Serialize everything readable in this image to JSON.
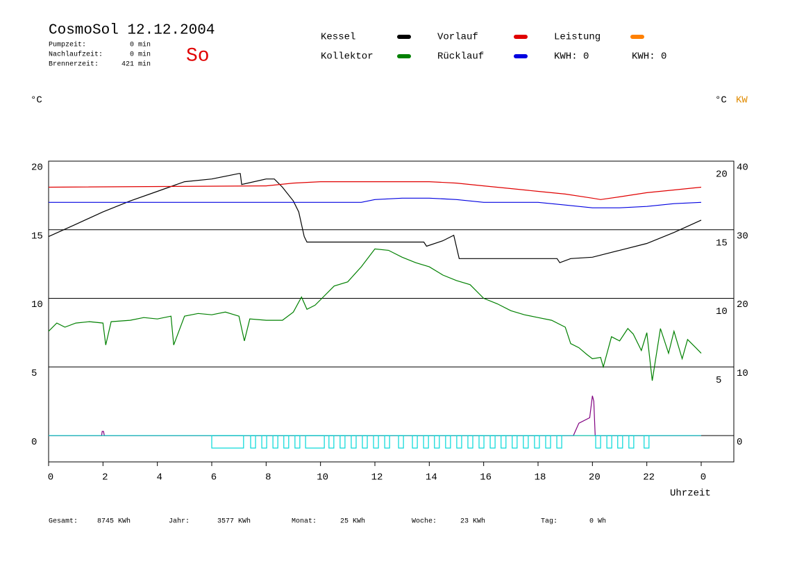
{
  "header": {
    "title": "CosmoSol 12.12.2004",
    "day": "So",
    "info": [
      {
        "label": "Pumpzeit:",
        "value": "0 min"
      },
      {
        "label": "Nachlaufzeit:",
        "value": "0 min"
      },
      {
        "label": "Brennerzeit:",
        "value": "421 min"
      }
    ],
    "kwh_labels": [
      {
        "text": "KWH: 0",
        "color": "#ff8000"
      },
      {
        "text": "KWH: 0",
        "color": "#800080"
      }
    ]
  },
  "chart_data": {
    "type": "line",
    "y_unit_left": "°C",
    "y_unit_right": "°C",
    "y2_unit": "KW",
    "x_label": "Uhrzeit",
    "xlim": [
      0,
      25.2
    ],
    "xticks": [
      0,
      2,
      4,
      6,
      8,
      10,
      12,
      14,
      16,
      18,
      20,
      22,
      {
        "value": 24,
        "label": "0"
      }
    ],
    "ylim": [
      -1.92,
      20
    ],
    "yticks": [
      0,
      5,
      10,
      15,
      20
    ],
    "yticks_right": [
      5,
      10,
      15,
      20
    ],
    "y2lim": [
      -3.84,
      40
    ],
    "y2ticks": [
      0,
      10,
      20,
      30,
      40
    ],
    "y2_color": "#e08a00",
    "grid": true,
    "series": [
      {
        "name": "Kessel",
        "color": "#000000",
        "x": [
          0,
          1,
          2,
          3,
          4,
          5,
          6,
          7,
          7.05,
          7.1,
          8,
          8.3,
          8.6,
          9,
          9.2,
          9.4,
          9.5,
          13.8,
          13.9,
          14.5,
          14.9,
          15.1,
          18.7,
          18.8,
          19.2,
          20,
          21,
          22,
          23,
          24
        ],
        "values": [
          14.5,
          15.4,
          16.3,
          17.1,
          17.8,
          18.5,
          18.7,
          19.1,
          19.1,
          18.3,
          18.7,
          18.7,
          18.1,
          17.1,
          16.3,
          14.5,
          14.1,
          14.1,
          13.8,
          14.2,
          14.6,
          12.9,
          12.9,
          12.6,
          12.9,
          13.0,
          13.5,
          14.0,
          14.8,
          15.7
        ]
      },
      {
        "name": "Kollektor",
        "color": "#008000",
        "x": [
          0,
          0.3,
          0.6,
          1,
          1.5,
          2,
          2.1,
          2.3,
          3,
          3.5,
          4,
          4.5,
          4.6,
          5,
          5.5,
          6,
          6.5,
          7,
          7.2,
          7.4,
          8,
          8.6,
          9,
          9.3,
          9.5,
          9.8,
          10,
          10.5,
          11,
          11.5,
          12,
          12.5,
          13,
          13.5,
          14,
          14.5,
          15,
          15.5,
          16,
          16.5,
          17,
          17.5,
          18,
          18.5,
          19,
          19.2,
          19.5,
          19.8,
          20,
          20.3,
          20.4,
          20.7,
          21,
          21.3,
          21.5,
          21.8,
          22,
          22.2,
          22.5,
          22.8,
          23,
          23.3,
          23.5,
          23.8,
          24
        ],
        "values": [
          7.6,
          8.2,
          7.9,
          8.2,
          8.3,
          8.2,
          6.6,
          8.3,
          8.4,
          8.6,
          8.5,
          8.7,
          6.6,
          8.7,
          8.9,
          8.8,
          9.0,
          8.7,
          6.9,
          8.5,
          8.4,
          8.4,
          9.0,
          10.1,
          9.2,
          9.5,
          9.9,
          10.9,
          11.2,
          12.3,
          13.6,
          13.5,
          13.0,
          12.6,
          12.3,
          11.7,
          11.3,
          11.0,
          10.0,
          9.6,
          9.1,
          8.8,
          8.6,
          8.4,
          7.9,
          6.7,
          6.4,
          5.9,
          5.6,
          5.7,
          5.0,
          7.2,
          6.9,
          7.8,
          7.4,
          6.2,
          7.5,
          4.0,
          7.8,
          6.0,
          7.6,
          5.6,
          7.0,
          6.4,
          6.0
        ]
      },
      {
        "name": "Vorlauf",
        "color": "#e00000",
        "x": [
          0,
          8,
          9,
          10,
          14,
          15,
          16,
          17,
          18,
          19,
          20,
          20.3,
          21,
          22,
          23,
          24
        ],
        "values": [
          18.1,
          18.2,
          18.4,
          18.5,
          18.5,
          18.4,
          18.2,
          18.0,
          17.8,
          17.6,
          17.3,
          17.2,
          17.4,
          17.7,
          17.9,
          18.1
        ]
      },
      {
        "name": "Rücklauf",
        "color": "#0000e0",
        "x": [
          0,
          11.5,
          12,
          13,
          14,
          15,
          16,
          18,
          19,
          20,
          21,
          22,
          23,
          24
        ],
        "values": [
          17.0,
          17.0,
          17.2,
          17.3,
          17.3,
          17.2,
          17.0,
          17.0,
          16.8,
          16.6,
          16.6,
          16.7,
          16.9,
          17.0
        ]
      },
      {
        "name": "Leistung",
        "color": "#ff8000",
        "axis": "y2",
        "x": [
          0,
          24
        ],
        "values": [
          0,
          0
        ]
      },
      {
        "color": "#800080",
        "x": [
          0,
          1.95,
          1.97,
          2.02,
          2.05,
          19.3,
          19.5,
          19.9,
          20.0,
          20.05,
          20.1,
          24
        ],
        "values": [
          0,
          0,
          0.3,
          0.3,
          0,
          0,
          0.9,
          1.3,
          2.9,
          2.5,
          0,
          0
        ]
      }
    ],
    "pump_color": "#00d8d8",
    "pump_on": [
      [
        6.0,
        7.17
      ],
      [
        7.43,
        7.61
      ],
      [
        7.84,
        8.02
      ],
      [
        8.25,
        8.43
      ],
      [
        8.65,
        8.83
      ],
      [
        9.06,
        9.24
      ],
      [
        9.45,
        10.14
      ],
      [
        10.31,
        10.49
      ],
      [
        10.72,
        10.9
      ],
      [
        11.13,
        11.31
      ],
      [
        11.54,
        11.72
      ],
      [
        11.95,
        12.13
      ],
      [
        12.36,
        12.54
      ],
      [
        12.87,
        13.05
      ],
      [
        13.38,
        13.56
      ],
      [
        13.79,
        13.97
      ],
      [
        14.19,
        14.37
      ],
      [
        14.6,
        14.78
      ],
      [
        15.01,
        15.19
      ],
      [
        15.42,
        15.6
      ],
      [
        15.83,
        16.01
      ],
      [
        16.24,
        16.42
      ],
      [
        16.64,
        16.82
      ],
      [
        17.05,
        17.23
      ],
      [
        17.46,
        17.64
      ],
      [
        17.87,
        18.05
      ],
      [
        18.28,
        18.46
      ],
      [
        18.69,
        18.87
      ],
      [
        20.12,
        20.3
      ],
      [
        20.53,
        20.71
      ],
      [
        20.93,
        21.11
      ],
      [
        21.34,
        21.52
      ],
      [
        21.9,
        22.08
      ]
    ]
  },
  "footer": [
    {
      "label": "Gesamt:",
      "value": "8745 KWh"
    },
    {
      "label": "Jahr:",
      "value": "3577 KWh"
    },
    {
      "label": "Monat:",
      "value": "25 KWh"
    },
    {
      "label": "Woche:",
      "value": "23 KWh"
    },
    {
      "label": "Tag:",
      "value": "0 Wh"
    }
  ]
}
